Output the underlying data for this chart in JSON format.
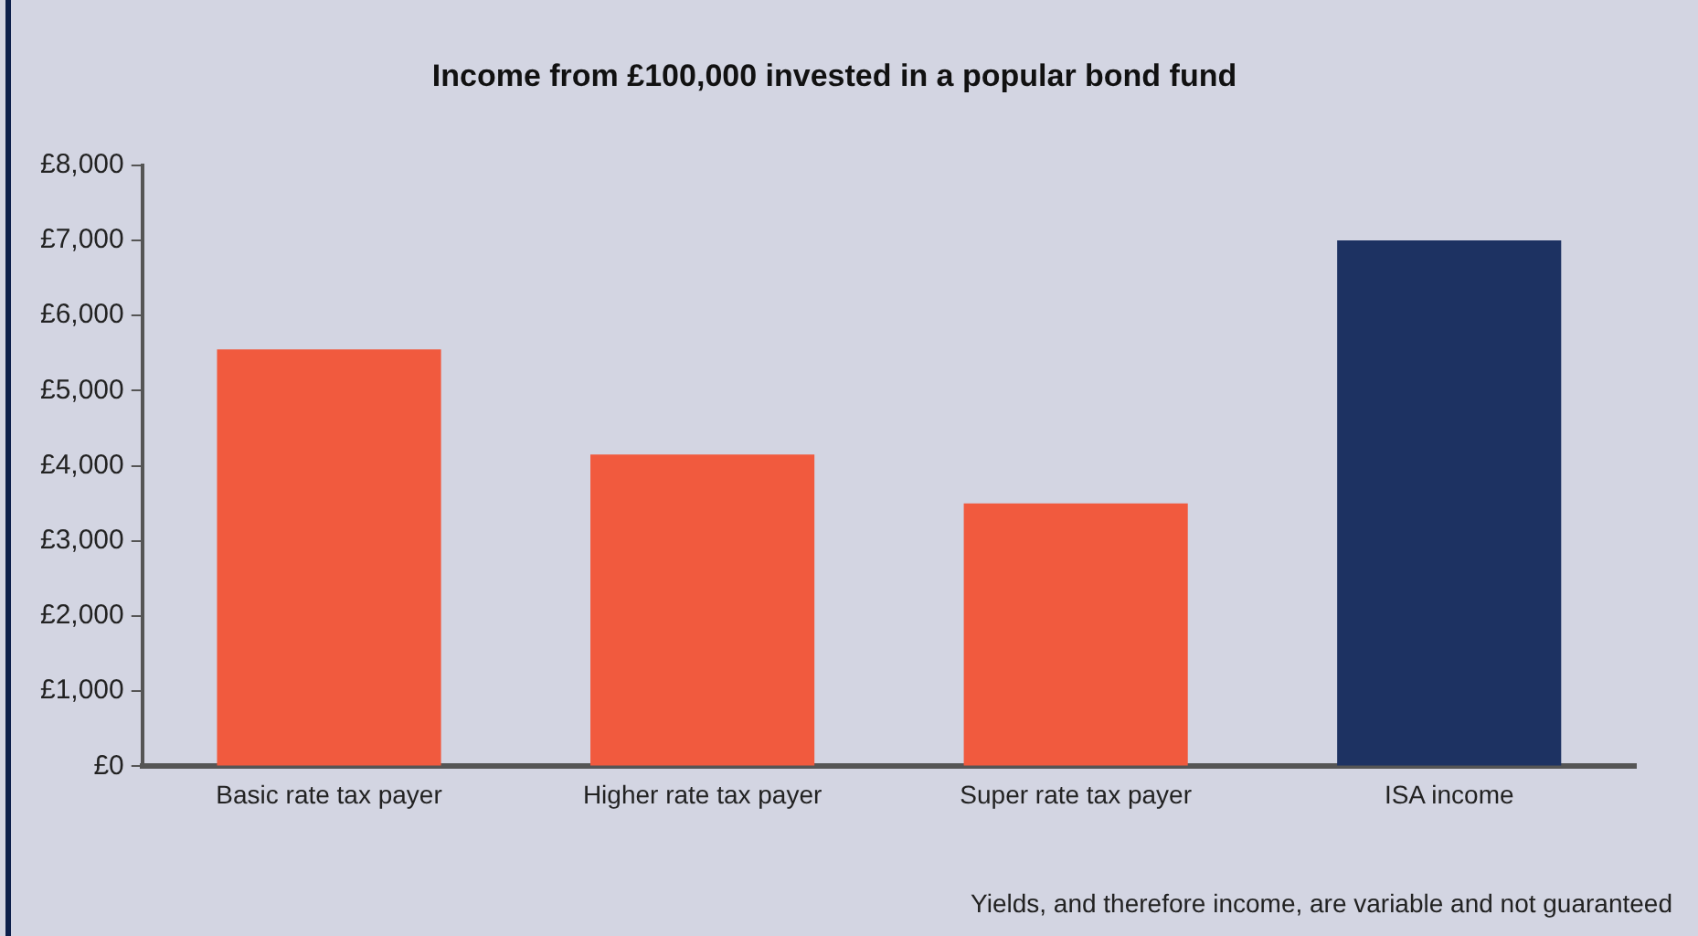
{
  "chart_data": {
    "type": "bar",
    "title": "Income from £100,000 invested in a popular bond fund",
    "categories": [
      "Basic rate tax payer",
      "Higher rate tax payer",
      "Super rate tax payer",
      "ISA income"
    ],
    "values": [
      5550,
      4150,
      3500,
      7000
    ],
    "colors": [
      "#f15a3e",
      "#f15a3e",
      "#f15a3e",
      "#1d3262"
    ],
    "ylim": [
      0,
      8000
    ],
    "yticks": [
      {
        "value": 0,
        "label": "£0"
      },
      {
        "value": 1000,
        "label": "£1,000"
      },
      {
        "value": 2000,
        "label": "£2,000"
      },
      {
        "value": 3000,
        "label": "£3,000"
      },
      {
        "value": 4000,
        "label": "£4,000"
      },
      {
        "value": 5000,
        "label": "£5,000"
      },
      {
        "value": 6000,
        "label": "£6,000"
      },
      {
        "value": 7000,
        "label": "£7,000"
      },
      {
        "value": 8000,
        "label": "£8,000"
      }
    ],
    "grid": false,
    "legend": false,
    "annotations": [
      "Yields, and therefore income, are variable and not guaranteed"
    ]
  }
}
